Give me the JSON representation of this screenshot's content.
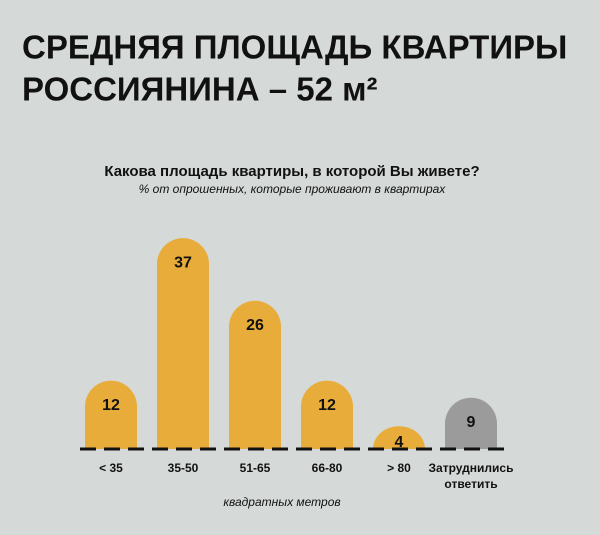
{
  "chart_data": {
    "type": "bar",
    "title": [
      "СРЕДНЯЯ ПЛОЩАДЬ КВАРТИРЫ",
      "РОССИЯНИНА –  52 м²"
    ],
    "subtitle": "Какова площадь квартиры, в которой Вы живете?",
    "note": "% от опрошенных, которые проживают в квартирах",
    "x_label": "квадратных метров",
    "categories": [
      "< 35",
      "35-50",
      "51-65",
      "66-80",
      "> 80",
      "Затруднились ответить"
    ],
    "values": [
      12,
      37,
      26,
      12,
      4,
      9
    ],
    "colors": [
      "#e8ac3a",
      "#e8ac3a",
      "#e8ac3a",
      "#e8ac3a",
      "#e8ac3a",
      "#9b9b9b"
    ]
  }
}
